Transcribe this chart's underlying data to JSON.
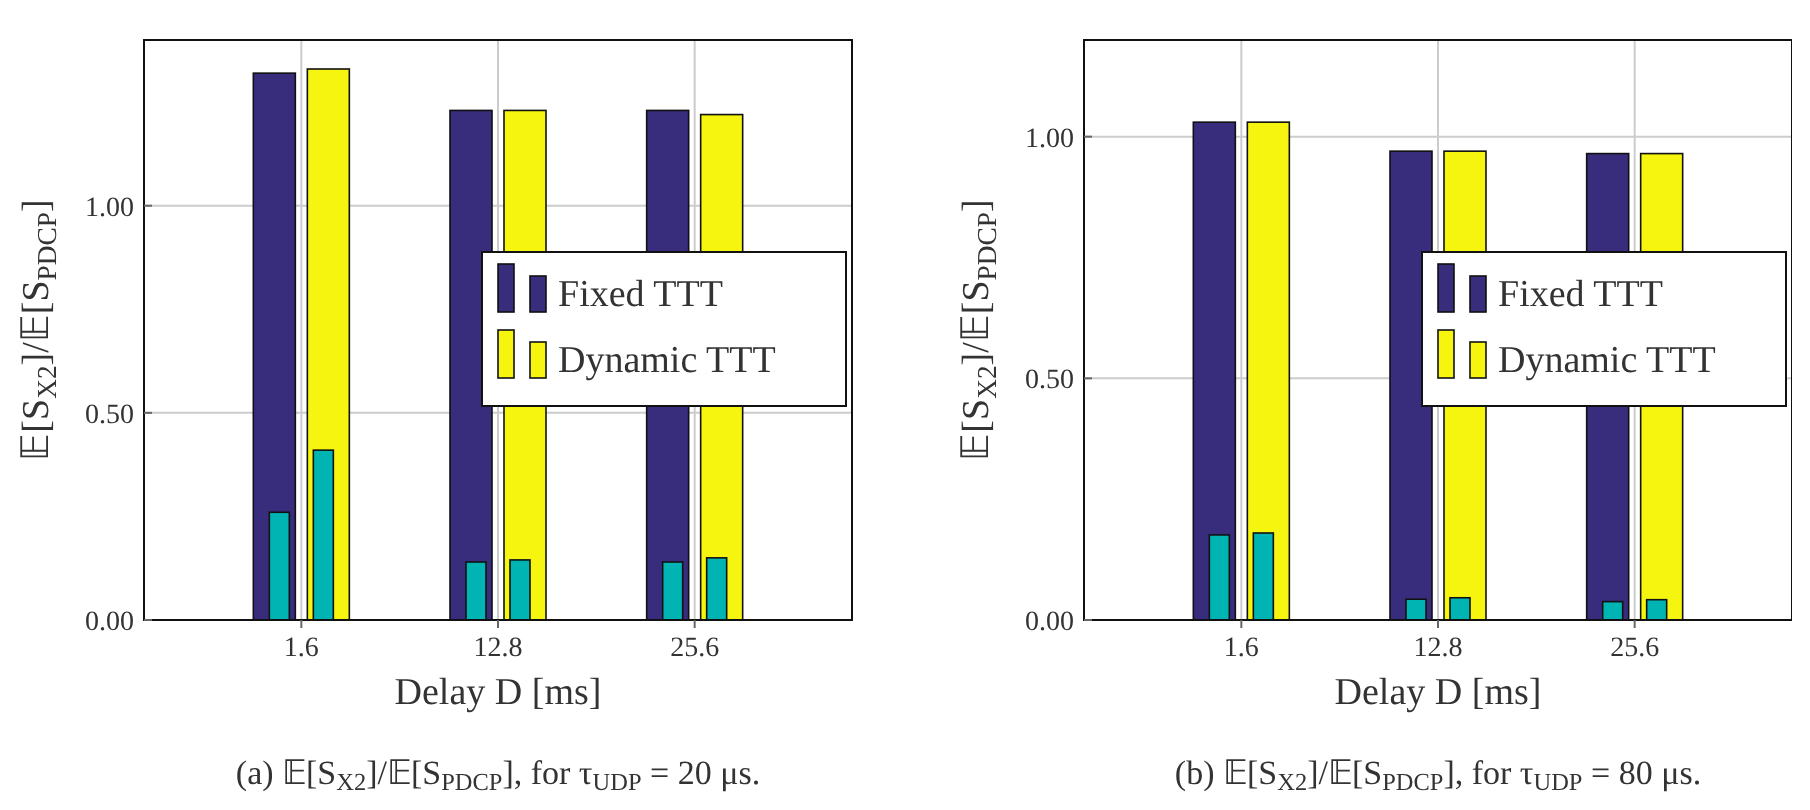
{
  "chart_data": [
    {
      "type": "bar",
      "title": "(a) 𝔼[S$_{X2}$]/𝔼[S$_{PDCP}$], for τ$_{UDP}$ = 20 μs.",
      "xlabel": "Delay D [ms]",
      "ylabel": "𝔼[S$_{X2}$]/𝔼[S$_{PDCP}$]",
      "categories": [
        "1.6",
        "12.8",
        "25.6"
      ],
      "series": [
        {
          "name": "Fixed TTT",
          "color": "#382c7c",
          "values": [
            1.32,
            1.23,
            1.23
          ]
        },
        {
          "name": "Dynamic TTT",
          "color": "#f5f50f",
          "values": [
            1.33,
            1.23,
            1.22
          ]
        },
        {
          "color": "#00b4b4",
          "values": [
            0.26,
            0.14,
            0.14
          ]
        },
        {
          "color": "#00b4b4",
          "values": [
            0.41,
            0.145,
            0.15
          ]
        }
      ],
      "ylim": [
        0,
        1.4
      ],
      "yticks": [
        {
          "value": 0,
          "label": "0.00"
        },
        {
          "value": 0.5,
          "label": "0.50"
        },
        {
          "value": 1,
          "label": "1.00"
        }
      ],
      "grid": true,
      "legend": "right"
    },
    {
      "type": "bar",
      "title": "(b) 𝔼[S$_{X2}$]/𝔼[S$_{PDCP}$], for τ$_{UDP}$ = 80 μs.",
      "xlabel": "Delay D [ms]",
      "ylabel": "𝔼[S$_{X2}$]/𝔼[S$_{PDCP}$]",
      "categories": [
        "1.6",
        "12.8",
        "25.6"
      ],
      "series": [
        {
          "name": "Fixed TTT",
          "color": "#382c7c",
          "values": [
            1.03,
            0.97,
            0.965
          ]
        },
        {
          "name": "Dynamic TTT",
          "color": "#f5f50f",
          "values": [
            1.03,
            0.97,
            0.965
          ]
        },
        {
          "color": "#00b4b4",
          "values": [
            0.176,
            0.043,
            0.038
          ]
        },
        {
          "color": "#00b4b4",
          "values": [
            0.18,
            0.046,
            0.042
          ]
        }
      ],
      "ylim": [
        0,
        1.2
      ],
      "yticks": [
        {
          "value": 0,
          "label": "0.00"
        },
        {
          "value": 0.5,
          "label": "0.50"
        },
        {
          "value": 1,
          "label": "1.00"
        }
      ],
      "grid": true,
      "legend": "right"
    }
  ]
}
